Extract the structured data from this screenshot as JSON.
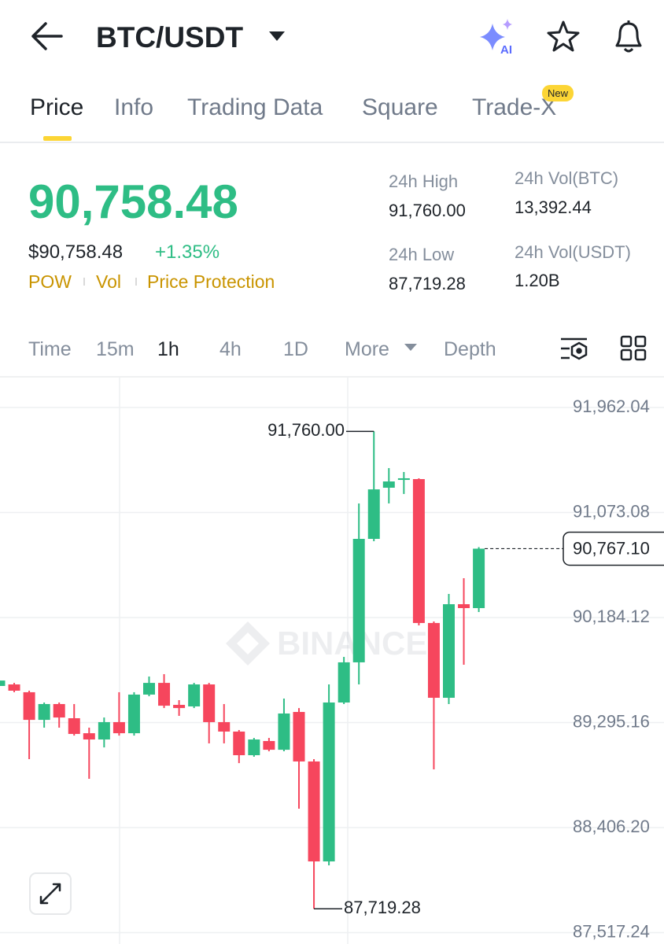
{
  "header": {
    "pair": "BTC/USDT",
    "ai_label": "AI"
  },
  "tabs": {
    "items": [
      "Price",
      "Info",
      "Trading Data",
      "Square",
      "Trade-X"
    ],
    "badge": "New"
  },
  "price": {
    "last": "90,758.48",
    "usd": "$90,758.48",
    "change": "+1.35%"
  },
  "tags": [
    "POW",
    "Vol",
    "Price Protection"
  ],
  "stats": [
    {
      "label": "24h High",
      "value": "91,760.00"
    },
    {
      "label": "24h Vol(BTC)",
      "value": "13,392.44"
    },
    {
      "label": "24h Low",
      "value": "87,719.28"
    },
    {
      "label": "24h Vol(USDT)",
      "value": "1.20B"
    }
  ],
  "intervals": [
    "Time",
    "15m",
    "1h",
    "4h",
    "1D",
    "More",
    "Depth"
  ],
  "chart_data": {
    "type": "candlestick",
    "up_color": "#2ebd85",
    "down_color": "#f6465d",
    "watermark": "BINANCE",
    "open": [
      89605,
      89618,
      89552,
      89318,
      89452,
      89332,
      89205,
      89152,
      89299,
      89205,
      89532,
      89631,
      89445,
      89432,
      89618,
      89299,
      89219,
      89019,
      89139,
      89065,
      89385,
      88966,
      88120,
      89465,
      89805,
      90850,
      91283,
      91349,
      91356,
      90138,
      89505,
      90297,
      90264
    ],
    "high": [
      89718,
      89631,
      89565,
      89465,
      89465,
      89452,
      89252,
      89338,
      89552,
      89552,
      89685,
      89705,
      89485,
      89631,
      89631,
      89452,
      89232,
      89165,
      89165,
      89498,
      89418,
      88986,
      89618,
      89851,
      91150,
      91760,
      91449,
      91416,
      91363,
      90151,
      90384,
      90517,
      90780
    ],
    "low": [
      89565,
      89552,
      88986,
      89252,
      89252,
      89185,
      88819,
      89085,
      89185,
      89185,
      89518,
      89418,
      89352,
      89418,
      89119,
      89119,
      88952,
      89006,
      89052,
      89052,
      88566,
      87719.28,
      88087,
      89452,
      89618,
      90830,
      91150,
      91230,
      90118,
      88899,
      89452,
      89785,
      90231
    ],
    "close": [
      89651,
      89565,
      89318,
      89452,
      89338,
      89199,
      89152,
      89299,
      89205,
      89532,
      89631,
      89438,
      89418,
      89618,
      89299,
      89219,
      89019,
      89152,
      89065,
      89372,
      88966,
      88120,
      89465,
      89805,
      90850,
      91269,
      91336,
      91363,
      90138,
      89505,
      90297,
      90264,
      90767.1
    ],
    "ylim": [
      87421,
      92215
    ],
    "yticks": [
      {
        "value": 91962.04,
        "label": "91,962.04"
      },
      {
        "value": 91073.08,
        "label": "91,073.08"
      },
      {
        "value": 90184.12,
        "label": "90,184.12"
      },
      {
        "value": 89295.16,
        "label": "89,295.16"
      },
      {
        "value": 88406.2,
        "label": "88,406.20"
      },
      {
        "value": 87517.24,
        "label": "87,517.24"
      }
    ],
    "grid": true,
    "annotations": {
      "high": {
        "value": 91760,
        "label": "91,760.00"
      },
      "low": {
        "value": 87719.28,
        "label": "87,719.28"
      },
      "last": {
        "value": 90767.1,
        "label": "90,767.10"
      }
    }
  }
}
